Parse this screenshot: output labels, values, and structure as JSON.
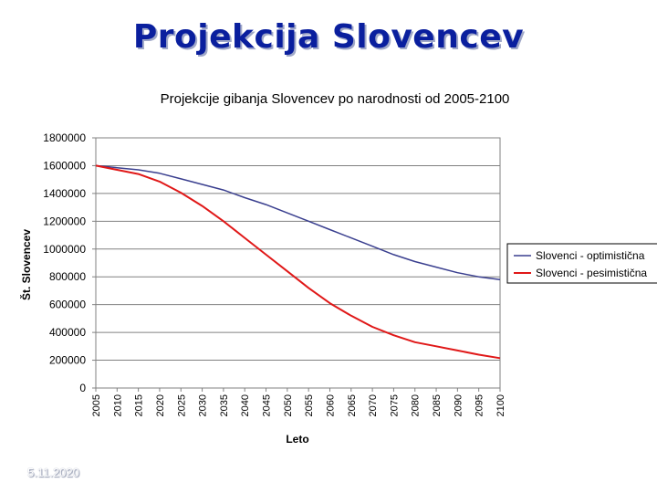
{
  "slide": {
    "title": "Projekcija Slovencev",
    "footer_date": "5.11.2020"
  },
  "colors": {
    "optimistic": "#3a3f8f",
    "pessimistic": "#e01818",
    "title": "#0a1f9e"
  },
  "chart_data": {
    "type": "line",
    "title": "Projekcije gibanja Slovencev po narodnosti od 2005-2100",
    "xlabel": "Leto",
    "ylabel": "Št. Slovencev",
    "ylim": [
      0,
      1800000
    ],
    "yticks": [
      "0",
      "200000",
      "400000",
      "600000",
      "800000",
      "1000000",
      "1200000",
      "1400000",
      "1600000",
      "1800000"
    ],
    "categories": [
      "2005",
      "2010",
      "2015",
      "2020",
      "2025",
      "2030",
      "2035",
      "2040",
      "2045",
      "2050",
      "2055",
      "2060",
      "2065",
      "2070",
      "2075",
      "2080",
      "2085",
      "2090",
      "2095",
      "2100"
    ],
    "grid": true,
    "legend_position": "right",
    "series": [
      {
        "name": "Slovenci - optimistična",
        "values": [
          1600000,
          1585000,
          1570000,
          1545000,
          1505000,
          1465000,
          1425000,
          1370000,
          1320000,
          1260000,
          1200000,
          1140000,
          1080000,
          1020000,
          960000,
          910000,
          870000,
          830000,
          800000,
          780000
        ]
      },
      {
        "name": "Slovenci - pesimistična",
        "values": [
          1600000,
          1570000,
          1540000,
          1485000,
          1405000,
          1310000,
          1200000,
          1080000,
          960000,
          840000,
          720000,
          610000,
          520000,
          440000,
          380000,
          330000,
          300000,
          270000,
          240000,
          215000
        ]
      }
    ]
  }
}
